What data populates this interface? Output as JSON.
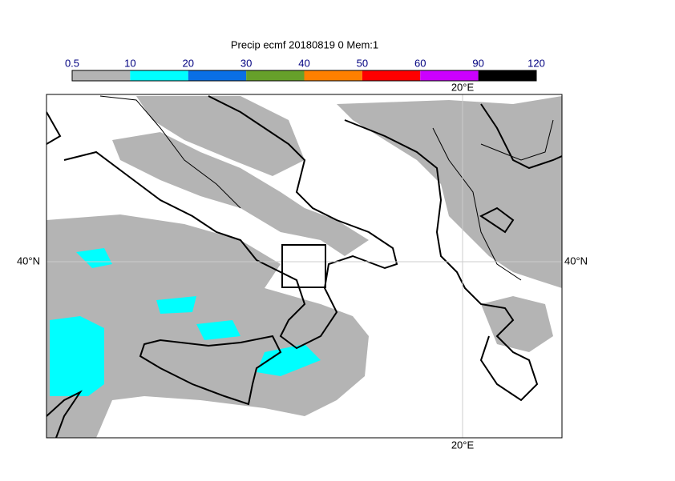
{
  "title": "Precip ecmf 20180819 0 Mem:1",
  "colorbar": {
    "ticks": [
      0.5,
      10,
      20,
      30,
      40,
      50,
      60,
      90,
      120
    ],
    "colors": [
      "#b4b4b4",
      "#00ffff",
      "#0a6fe6",
      "#66a02a",
      "#ff8000",
      "#ff0000",
      "#cc00ff",
      "#000000"
    ]
  },
  "map": {
    "lon_top": "20°E",
    "lon_bottom": "20°E",
    "lat_left": "40°N",
    "lat_right": "40°N"
  }
}
